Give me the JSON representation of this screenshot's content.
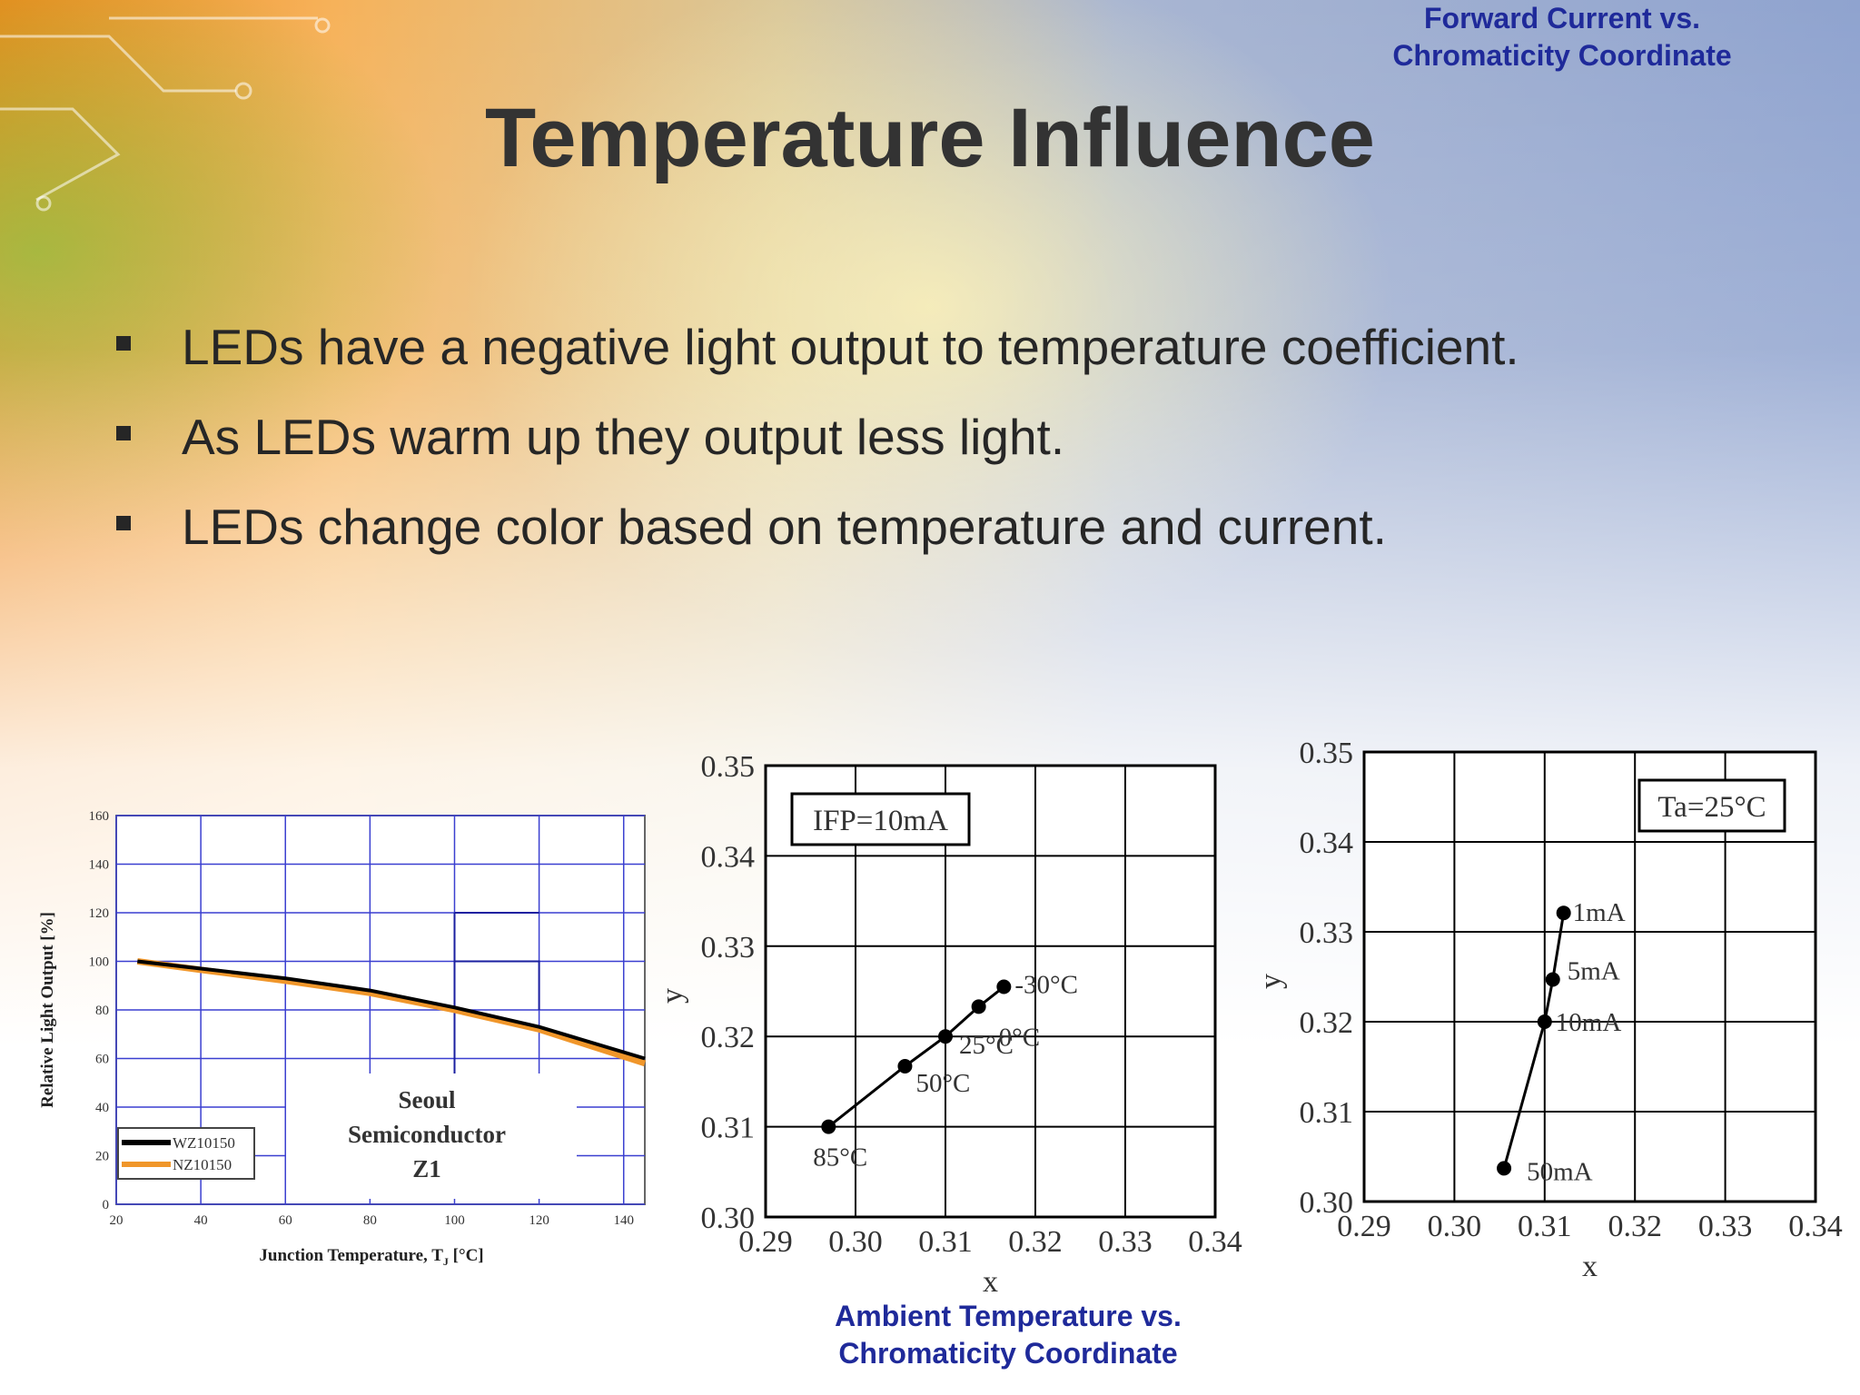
{
  "slide": {
    "title": "Temperature Influence",
    "bullets": [
      "LEDs have a negative light output to temperature coefficient.",
      "As LEDs warm up they output less light.",
      "LEDs change color based on temperature and current."
    ]
  },
  "chart_data": [
    {
      "type": "line",
      "title": "",
      "annotation": [
        "Seoul",
        "Semiconductor",
        "Z1"
      ],
      "xlabel": "Junction Temperature, T",
      "xlabel_sub": "J",
      "xlabel_unit": "[°C]",
      "ylabel": "Relative Light Output [%]",
      "xlim": [
        20,
        145
      ],
      "ylim": [
        0,
        160
      ],
      "xticks": [
        20,
        40,
        60,
        80,
        100,
        120,
        140
      ],
      "yticks": [
        0,
        20,
        40,
        60,
        80,
        100,
        120,
        140,
        160
      ],
      "grid": true,
      "legend_position": "bottom-left",
      "series": [
        {
          "name": "WZ10150",
          "color": "#000000",
          "x": [
            25,
            40,
            60,
            80,
            100,
            120,
            145
          ],
          "y": [
            100,
            97,
            93,
            88,
            81,
            73,
            60
          ]
        },
        {
          "name": "NZ10150",
          "color": "#f0962a",
          "x": [
            25,
            40,
            60,
            80,
            100,
            120,
            145
          ],
          "y": [
            100,
            96.5,
            92,
            87,
            80,
            72,
            58
          ]
        }
      ]
    },
    {
      "type": "scatter",
      "xlabel": "x",
      "ylabel": "y",
      "xlim": [
        0.29,
        0.34
      ],
      "ylim": [
        0.3,
        0.35
      ],
      "xticks": [
        "0.29",
        "0.30",
        "0.31",
        "0.32",
        "0.33",
        "0.34"
      ],
      "yticks": [
        "0.30",
        "0.31",
        "0.32",
        "0.33",
        "0.34",
        "0.35"
      ],
      "grid": true,
      "condition_label": "IFP=10mA",
      "points": [
        {
          "label": "85°C",
          "x": 0.297,
          "y": 0.31
        },
        {
          "label": "50°C",
          "x": 0.3055,
          "y": 0.3167
        },
        {
          "label": "25°C",
          "x": 0.31,
          "y": 0.32
        },
        {
          "label": "0°C",
          "x": 0.3137,
          "y": 0.3233
        },
        {
          "label": "-30°C",
          "x": 0.3165,
          "y": 0.3255
        }
      ],
      "caption": [
        "Ambient Temperature vs.",
        "Chromaticity Coordinate"
      ]
    },
    {
      "type": "scatter",
      "xlabel": "x",
      "ylabel": "y",
      "xlim": [
        0.29,
        0.34
      ],
      "ylim": [
        0.3,
        0.35
      ],
      "xticks": [
        "0.29",
        "0.30",
        "0.31",
        "0.32",
        "0.33",
        "0.34"
      ],
      "yticks": [
        "0.30",
        "0.31",
        "0.32",
        "0.33",
        "0.34",
        "0.35"
      ],
      "grid": true,
      "condition_label": "Ta=25°C",
      "points": [
        {
          "label": "1mA",
          "x": 0.3121,
          "y": 0.3321
        },
        {
          "label": "5mA",
          "x": 0.3109,
          "y": 0.3247
        },
        {
          "label": "10mA",
          "x": 0.31,
          "y": 0.32
        },
        {
          "label": "50mA",
          "x": 0.3055,
          "y": 0.3037
        }
      ],
      "caption": [
        "Forward Current vs.",
        "Chromaticity Coordinate"
      ]
    }
  ]
}
